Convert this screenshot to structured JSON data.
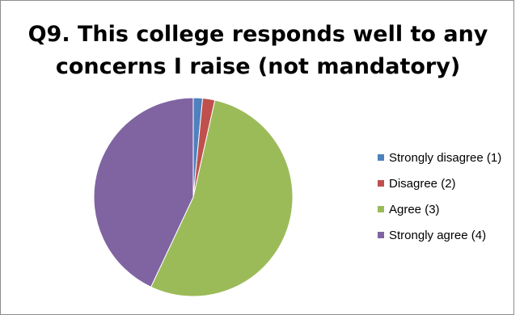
{
  "chart_data": {
    "type": "pie",
    "title_lines": [
      "Q9. This college responds well to any",
      "concerns I raise (not mandatory)"
    ],
    "slices": [
      {
        "label": "Strongly disagree (1)",
        "value": 1.5,
        "color": "#4f81bd"
      },
      {
        "label": "Disagree (2)",
        "value": 2.0,
        "color": "#c0504d"
      },
      {
        "label": "Agree (3)",
        "value": 53.5,
        "color": "#9bbb59"
      },
      {
        "label": "Strongly agree (4)",
        "value": 43.0,
        "color": "#8064a2"
      }
    ],
    "legend_position": "right"
  }
}
